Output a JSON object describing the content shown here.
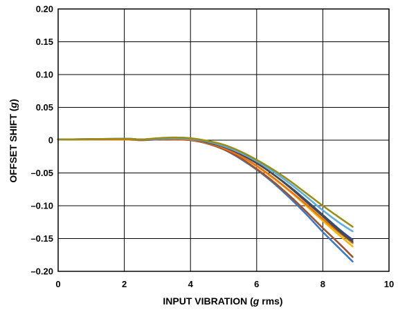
{
  "chart_data": {
    "type": "line",
    "xlabel": {
      "pre": "INPUT VIBRATION (",
      "italic": "g",
      "post": " rms)"
    },
    "ylabel": {
      "pre": "OFFSET SHIFT (",
      "italic": "g",
      "post": ")"
    },
    "xlim": [
      0,
      10
    ],
    "ylim": [
      -0.2,
      0.2
    ],
    "x_ticks": [
      0,
      2,
      4,
      6,
      8,
      10
    ],
    "x_tick_labels": [
      "0",
      "2",
      "4",
      "6",
      "8",
      "10"
    ],
    "y_ticks": [
      0.2,
      0.15,
      0.1,
      0.05,
      0,
      -0.05,
      -0.1,
      -0.15,
      -0.2
    ],
    "y_tick_labels": [
      "0.20",
      "0.15",
      "0.10",
      "0.05",
      "0",
      "–0.05",
      "–0.10",
      "–0.15",
      "–0.20"
    ],
    "grid": true,
    "series": [
      {
        "color": "#3a78c8",
        "x": [
          0,
          2,
          2.5,
          3,
          3.5,
          4,
          4.5,
          5,
          5.5,
          6,
          6.5,
          7,
          7.5,
          8,
          8.5,
          8.9
        ],
        "y": [
          0.001,
          0.001,
          0.0,
          0.001,
          0.001,
          0.0,
          -0.005,
          -0.014,
          -0.028,
          -0.045,
          -0.065,
          -0.088,
          -0.113,
          -0.14,
          -0.165,
          -0.185
        ]
      },
      {
        "color": "#a0522d",
        "x": [
          0,
          2,
          2.5,
          3,
          3.5,
          4,
          4.5,
          5,
          5.5,
          6,
          6.5,
          7,
          7.5,
          8,
          8.5,
          8.9
        ],
        "y": [
          0.001,
          0.001,
          0.0,
          0.001,
          0.001,
          0.0,
          -0.005,
          -0.014,
          -0.027,
          -0.044,
          -0.063,
          -0.085,
          -0.109,
          -0.134,
          -0.158,
          -0.178
        ]
      },
      {
        "color": "#f5b800",
        "x": [
          0,
          2,
          2.5,
          3,
          3.5,
          4,
          4.5,
          5,
          5.5,
          6,
          6.5,
          7,
          7.5,
          8,
          8.5,
          8.9
        ],
        "y": [
          0.001,
          0.001,
          0.001,
          0.002,
          0.002,
          0.001,
          -0.004,
          -0.012,
          -0.024,
          -0.04,
          -0.058,
          -0.078,
          -0.1,
          -0.123,
          -0.145,
          -0.162
        ]
      },
      {
        "color": "#e8731a",
        "x": [
          0,
          2,
          2.5,
          3,
          3.5,
          4,
          4.5,
          5,
          5.5,
          6,
          6.5,
          7,
          7.5,
          8,
          8.5,
          8.9
        ],
        "y": [
          0.001,
          0.001,
          0.001,
          0.002,
          0.002,
          0.001,
          -0.004,
          -0.012,
          -0.024,
          -0.039,
          -0.057,
          -0.077,
          -0.098,
          -0.12,
          -0.141,
          -0.157
        ]
      },
      {
        "color": "#2b4d8c",
        "x": [
          0,
          2,
          2.5,
          3,
          3.5,
          4,
          4.5,
          5,
          5.5,
          6,
          6.5,
          7,
          7.5,
          8,
          8.5,
          8.9
        ],
        "y": [
          0.001,
          0.002,
          0.001,
          0.002,
          0.003,
          0.002,
          -0.003,
          -0.01,
          -0.021,
          -0.035,
          -0.052,
          -0.071,
          -0.092,
          -0.114,
          -0.136,
          -0.152
        ]
      },
      {
        "color": "#4a4a4a",
        "x": [
          0,
          2,
          2.5,
          3,
          3.5,
          4,
          4.5,
          5,
          5.5,
          6,
          6.5,
          7,
          7.5,
          8,
          8.5,
          8.9
        ],
        "y": [
          0.001,
          0.002,
          0.001,
          0.002,
          0.003,
          0.002,
          -0.003,
          -0.01,
          -0.021,
          -0.035,
          -0.052,
          -0.072,
          -0.094,
          -0.116,
          -0.139,
          -0.155
        ]
      },
      {
        "color": "#5aaee0",
        "x": [
          0,
          2,
          2.5,
          3,
          3.5,
          4,
          4.5,
          5,
          5.5,
          6,
          6.5,
          7,
          7.5,
          8,
          8.5,
          8.9
        ],
        "y": [
          0.001,
          0.002,
          0.001,
          0.002,
          0.003,
          0.002,
          -0.002,
          -0.009,
          -0.019,
          -0.032,
          -0.048,
          -0.066,
          -0.086,
          -0.107,
          -0.126,
          -0.139
        ]
      },
      {
        "color": "#9c8c14",
        "x": [
          0,
          2,
          2.5,
          3,
          3.5,
          4,
          4.5,
          5,
          5.5,
          6,
          6.5,
          7,
          7.5,
          8,
          8.5,
          8.9
        ],
        "y": [
          0.001,
          0.002,
          0.001,
          0.003,
          0.004,
          0.003,
          -0.001,
          -0.007,
          -0.017,
          -0.03,
          -0.045,
          -0.062,
          -0.081,
          -0.1,
          -0.118,
          -0.132
        ]
      }
    ]
  }
}
